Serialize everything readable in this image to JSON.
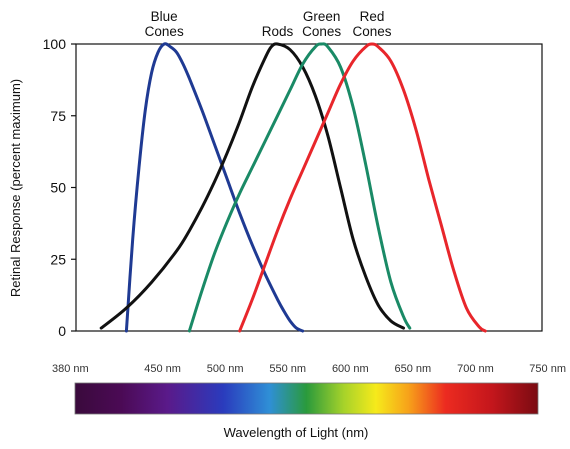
{
  "chart_data": {
    "type": "line",
    "title": "",
    "xlabel": "Wavelength of Light (nm)",
    "ylabel": "Retinal Response (percent maximum)",
    "ylim": [
      0,
      100
    ],
    "xlim": [
      380,
      750
    ],
    "y_ticks": [
      "0",
      "25",
      "50",
      "75",
      "100"
    ],
    "x_ticks": [
      "380 nm",
      "450 nm",
      "500 nm",
      "550 nm",
      "600 nm",
      "650 nm",
      "700 nm",
      "750 nm"
    ],
    "grid": false,
    "legend": "labels above each curve peak",
    "series": [
      {
        "name": "Blue Cones",
        "label_lines": [
          "Blue",
          "Cones"
        ],
        "color": "#1f3a93",
        "x": [
          420,
          425,
          430,
          435,
          440,
          445,
          450,
          455,
          460,
          465,
          470,
          480,
          490,
          500,
          510,
          520,
          530,
          540,
          545,
          550,
          555,
          560
        ],
        "y": [
          0,
          32,
          57,
          77,
          90,
          97,
          100,
          99,
          97,
          93,
          88,
          77,
          65,
          53,
          41,
          30,
          20,
          11,
          7,
          3.5,
          1,
          0
        ]
      },
      {
        "name": "Rods",
        "label_lines": [
          "Rods"
        ],
        "color": "#111111",
        "x": [
          400,
          420,
          440,
          460,
          470,
          480,
          490,
          500,
          510,
          520,
          530,
          535,
          540,
          550,
          560,
          570,
          580,
          590,
          600,
          610,
          620,
          630,
          640
        ],
        "y": [
          1,
          8,
          17,
          28,
          35,
          43,
          52,
          62,
          73,
          85,
          95,
          99,
          100,
          98,
          92,
          82,
          68,
          50,
          32,
          19,
          9,
          3.5,
          1
        ]
      },
      {
        "name": "Green Cones",
        "label_lines": [
          "Green",
          "Cones"
        ],
        "color": "#1a8a66",
        "x": [
          470,
          480,
          490,
          500,
          510,
          520,
          530,
          540,
          550,
          560,
          570,
          575,
          580,
          590,
          600,
          610,
          620,
          630,
          640,
          645
        ],
        "y": [
          0,
          14,
          27,
          38,
          48,
          57,
          66,
          75,
          84,
          93,
          99,
          100,
          99,
          92,
          78,
          58,
          36,
          17,
          5,
          1
        ]
      },
      {
        "name": "Red Cones",
        "label_lines": [
          "Red",
          "Cones"
        ],
        "color": "#e8262b",
        "x": [
          510,
          520,
          530,
          540,
          550,
          560,
          570,
          580,
          590,
          600,
          610,
          615,
          620,
          630,
          640,
          650,
          660,
          670,
          680,
          690,
          700,
          705
        ],
        "y": [
          0,
          11,
          23,
          35,
          46,
          56,
          66,
          76,
          86,
          94,
          99,
          100,
          99,
          94,
          84,
          70,
          53,
          37,
          21,
          8,
          1.5,
          0
        ]
      }
    ]
  }
}
